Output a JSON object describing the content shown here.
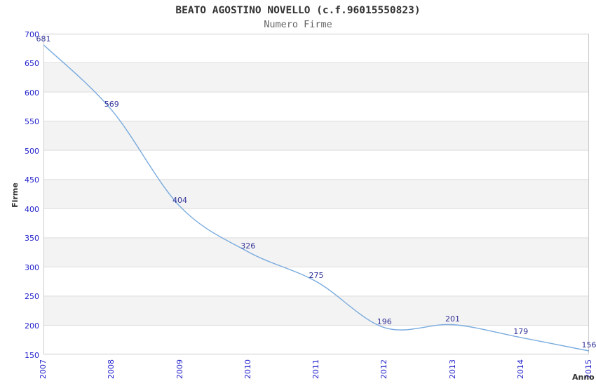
{
  "chart_data": {
    "type": "line",
    "title": "BEATO AGOSTINO NOVELLO (c.f.96015550823)",
    "subtitle": "Numero Firme",
    "xlabel": "Anno",
    "ylabel": "Firme",
    "categories": [
      "2007",
      "2008",
      "2009",
      "2010",
      "2011",
      "2012",
      "2013",
      "2014",
      "2015"
    ],
    "values": [
      681,
      569,
      404,
      326,
      275,
      196,
      201,
      179,
      156
    ],
    "ylim": [
      150,
      700
    ],
    "yticks": [
      150,
      200,
      250,
      300,
      350,
      400,
      450,
      500,
      550,
      600,
      650,
      700
    ],
    "grid": "horizontal",
    "banded_background": true,
    "legend": "none",
    "colors": {
      "line": "#79ABDE",
      "data_label": "#333399",
      "tick_label": "#2222CC",
      "axis_title": "#333333",
      "title": "#333333",
      "subtitle": "#666666",
      "band": "#F3F3F3",
      "gridline": "#DDDDDD",
      "border": "#CCCCCC",
      "background": "#FFFFFF"
    }
  }
}
